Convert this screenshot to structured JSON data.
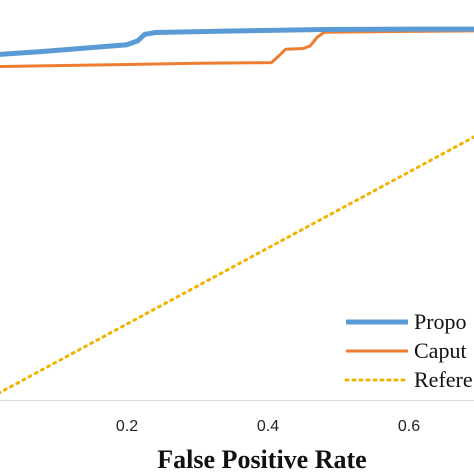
{
  "chart_data": {
    "type": "line",
    "xlabel": "False Positive Rate",
    "ylabel": "",
    "xlim": [
      0.0,
      0.8
    ],
    "ylim": [
      0.0,
      1.0
    ],
    "x_ticks": [
      {
        "value": 0.2,
        "label": "0.2"
      },
      {
        "value": 0.4,
        "label": "0.4"
      },
      {
        "value": 0.6,
        "label": "0.6"
      }
    ],
    "legend": {
      "placement": "bottom-right"
    },
    "series": [
      {
        "name": "Propo",
        "color": "#5b9bd5",
        "style": "solid",
        "x": [
          0.0,
          0.08,
          0.2,
          0.215,
          0.225,
          0.24,
          0.35,
          0.48,
          0.6,
          0.8
        ],
        "y": [
          0.907,
          0.917,
          0.935,
          0.945,
          0.962,
          0.967,
          0.971,
          0.975,
          0.976,
          0.976
        ]
      },
      {
        "name": "Caput",
        "color": "#ed7d31",
        "style": "solid",
        "x": [
          0.0,
          0.1,
          0.2,
          0.3,
          0.405,
          0.415,
          0.425,
          0.45,
          0.46,
          0.47,
          0.48,
          0.6,
          0.8
        ],
        "y": [
          0.877,
          0.88,
          0.883,
          0.886,
          0.888,
          0.905,
          0.923,
          0.925,
          0.932,
          0.955,
          0.968,
          0.97,
          0.973
        ]
      },
      {
        "name": "Refere",
        "color": "#f0b400",
        "style": "dotted",
        "x": [
          0.0,
          0.8
        ],
        "y": [
          0.0,
          0.8
        ]
      }
    ]
  }
}
